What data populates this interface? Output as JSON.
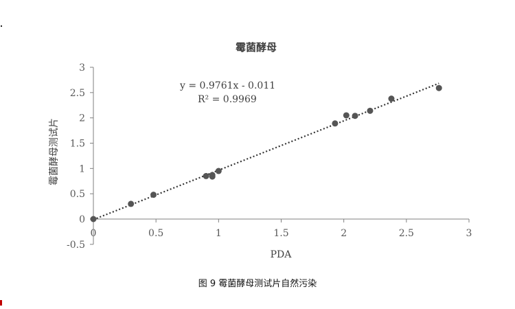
{
  "caption": "图 9 霉菌酵母测试片自然污染",
  "chart_data": {
    "type": "scatter",
    "title": "霉菌酵母",
    "xlabel": "PDA",
    "ylabel": "霉菌酵母测试片",
    "xlim": [
      0,
      3
    ],
    "ylim": [
      -0.5,
      3
    ],
    "x_ticks": [
      "0",
      "0.5",
      "1",
      "1.5",
      "2",
      "2.5",
      "3"
    ],
    "y_ticks": [
      "-0.5",
      "0",
      "0.5",
      "1",
      "1.5",
      "2",
      "2.5",
      "3"
    ],
    "grid": false,
    "legend": "none",
    "points": [
      {
        "x": 0,
        "y": 0
      },
      {
        "x": 0.3,
        "y": 0.3
      },
      {
        "x": 0.48,
        "y": 0.48
      },
      {
        "x": 0.9,
        "y": 0.85
      },
      {
        "x": 0.95,
        "y": 0.84
      },
      {
        "x": 0.95,
        "y": 0.87
      },
      {
        "x": 1.0,
        "y": 0.95
      },
      {
        "x": 1.93,
        "y": 1.89
      },
      {
        "x": 2.02,
        "y": 2.05
      },
      {
        "x": 2.09,
        "y": 2.04
      },
      {
        "x": 2.21,
        "y": 2.14
      },
      {
        "x": 2.38,
        "y": 2.38
      },
      {
        "x": 2.76,
        "y": 2.59
      }
    ],
    "trendline": {
      "slope": 0.9761,
      "intercept": -0.011,
      "x_range": [
        0,
        2.76
      ]
    },
    "equation": "y = 0.9761x - 0.011",
    "r_squared": "R² = 0.9969",
    "colors": {
      "points": "#555555",
      "trendline": "#333333",
      "axis": "#7f7f7f",
      "text": "#595959"
    }
  }
}
